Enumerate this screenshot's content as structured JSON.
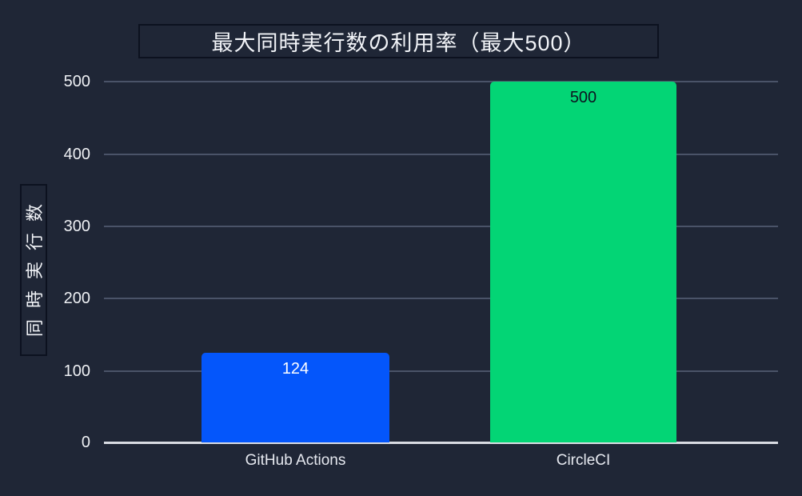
{
  "chart_data": {
    "type": "bar",
    "title": "最大同時実行数の利用率（最大500）",
    "ylabel": "同時実行数",
    "xlabel": "",
    "categories": [
      "GitHub Actions",
      "CircleCI"
    ],
    "values": [
      124,
      500
    ],
    "yticks": [
      "500",
      "400",
      "300",
      "200",
      "100",
      "0"
    ],
    "ylim": [
      0,
      500
    ],
    "grid": "horizontal gridlines every 100 units",
    "legend": "none",
    "bar_colors": [
      "#0456fb",
      "#03d575"
    ],
    "value_label_colors": [
      "#ffffff",
      "#0d1420"
    ]
  },
  "colors": {
    "background": "#1f2636",
    "grid_line": "#4a5368",
    "axis_line": "#d9dce3",
    "box_border": "#0c111f",
    "text": "#f2f4f8"
  }
}
